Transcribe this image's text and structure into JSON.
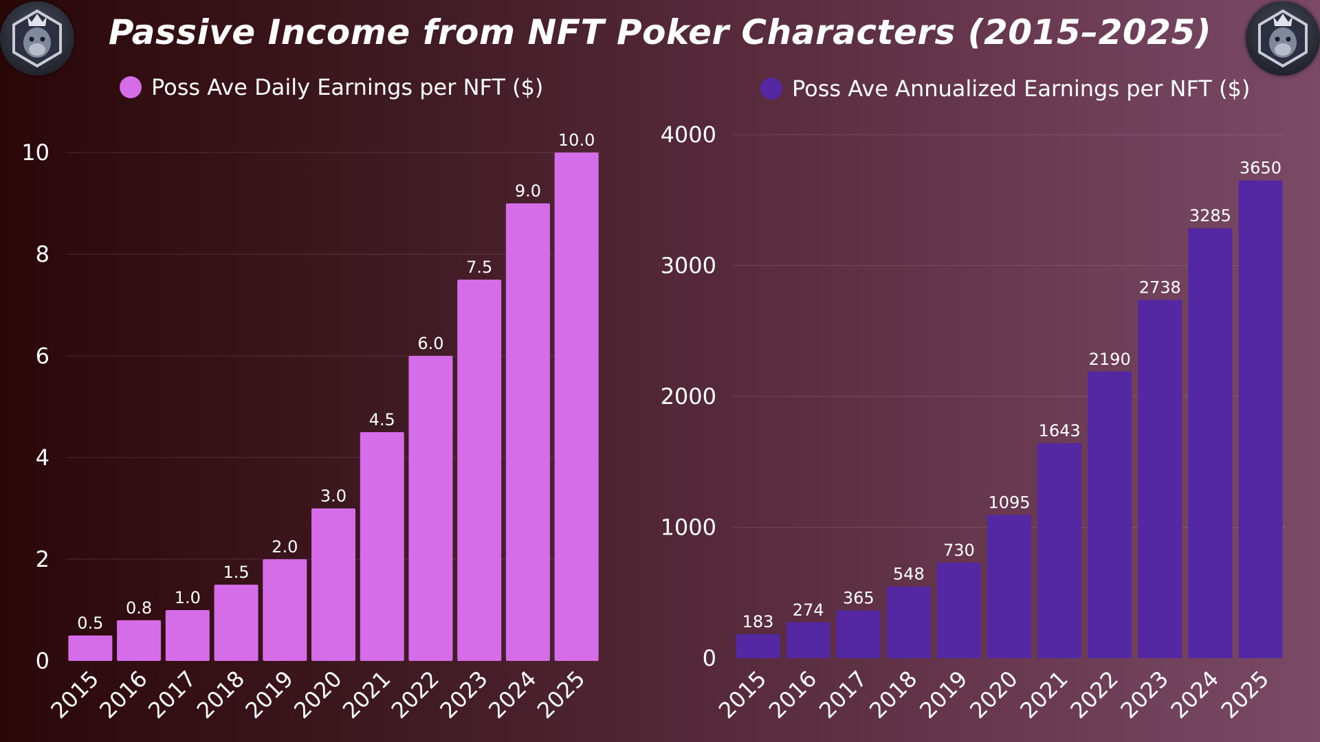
{
  "page": {
    "title": "Passive Income from NFT Poker Characters (2015–2025)",
    "logo_left_icon": "gorilla-crown-badge-icon",
    "logo_right_icon": "gorilla-crown-badge-icon"
  },
  "chart_data": [
    {
      "type": "bar",
      "title": "",
      "categories": [
        "2015",
        "2016",
        "2017",
        "2018",
        "2019",
        "2020",
        "2021",
        "2022",
        "2023",
        "2024",
        "2025"
      ],
      "series": [
        {
          "name": "Poss Ave Daily Earnings per NFT ($)",
          "values": [
            0.5,
            0.8,
            1.0,
            1.5,
            2.0,
            3.0,
            4.5,
            6.0,
            7.5,
            9.0,
            10.0
          ],
          "labels": [
            "0.5",
            "0.8",
            "1.0",
            "1.5",
            "2.0",
            "3.0",
            "4.5",
            "6.0",
            "7.5",
            "9.0",
            "10.0"
          ],
          "color": "#d56ce8"
        }
      ],
      "yticks": [
        "0",
        "2",
        "4",
        "6",
        "8",
        "10"
      ],
      "ylim": [
        0,
        10
      ],
      "grid": true,
      "legend_position": "top-left"
    },
    {
      "type": "bar",
      "title": "",
      "categories": [
        "2015",
        "2016",
        "2017",
        "2018",
        "2019",
        "2020",
        "2021",
        "2022",
        "2023",
        "2024",
        "2025"
      ],
      "series": [
        {
          "name": "Poss Ave Annualized Earnings per NFT ($)",
          "values": [
            183,
            274,
            365,
            548,
            730,
            1095,
            1643,
            2190,
            2738,
            3285,
            3650
          ],
          "labels": [
            "183",
            "274",
            "365",
            "548",
            "730",
            "1095",
            "1643",
            "2190",
            "2738",
            "3285",
            "3650"
          ],
          "color": "#5428a3"
        }
      ],
      "yticks": [
        "0",
        "1000",
        "2000",
        "3000",
        "4000"
      ],
      "ylim": [
        0,
        4000
      ],
      "grid": true,
      "legend_position": "top-right"
    }
  ]
}
